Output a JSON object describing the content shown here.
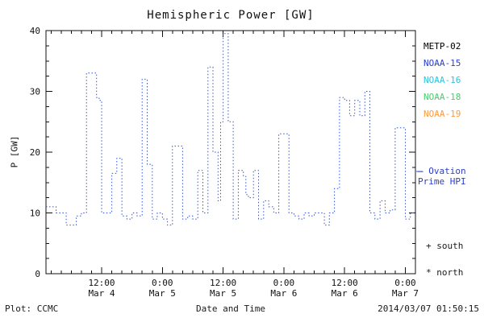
{
  "title": "Hemispheric Power [GW]",
  "ylabel": "P [GW]",
  "footer": {
    "plot_source": "Plot: CCMC",
    "xlabel": "Date and Time",
    "timestamp": "2014/03/07 01:50:15"
  },
  "legend": {
    "satellites": [
      {
        "label": "METP-02",
        "color": "#000000"
      },
      {
        "label": "NOAA-15",
        "color": "#2a3fcc"
      },
      {
        "label": "NOAA-16",
        "color": "#2fc4dd"
      },
      {
        "label": "NOAA-18",
        "color": "#4ecb71"
      },
      {
        "label": "NOAA-19",
        "color": "#ff9a3c"
      }
    ],
    "ovation": {
      "line1": "— Ovation",
      "line2": "Prime HPI",
      "color": "#2a3fcc"
    },
    "markers": [
      {
        "label": "+ south"
      },
      {
        "label": "* north"
      }
    ]
  },
  "chart_data": {
    "type": "line",
    "line_style": "dotted-step",
    "color": "#3355cc",
    "title": "Hemispheric Power [GW]",
    "xlabel": "Date and Time",
    "ylabel": "P [GW]",
    "ylim": [
      0,
      40
    ],
    "yticks": [
      0,
      10,
      20,
      30,
      40
    ],
    "x_hours_range": [
      1,
      74
    ],
    "x_hours_origin": "Mar 4 00:00",
    "xticks": [
      {
        "hour": 12,
        "time": "12:00",
        "date": "Mar 4"
      },
      {
        "hour": 24,
        "time": "0:00",
        "date": "Mar 5"
      },
      {
        "hour": 36,
        "time": "12:00",
        "date": "Mar 5"
      },
      {
        "hour": 48,
        "time": "0:00",
        "date": "Mar 6"
      },
      {
        "hour": 60,
        "time": "12:00",
        "date": "Mar 6"
      },
      {
        "hour": 72,
        "time": "0:00",
        "date": "Mar 7"
      }
    ],
    "series": [
      {
        "name": "Ovation Prime HPI",
        "points": [
          [
            1,
            11
          ],
          [
            2,
            11
          ],
          [
            3,
            10
          ],
          [
            4,
            10
          ],
          [
            5,
            8
          ],
          [
            6,
            8
          ],
          [
            7,
            9.5
          ],
          [
            8,
            10
          ],
          [
            9,
            33
          ],
          [
            10,
            33
          ],
          [
            11,
            29
          ],
          [
            11.5,
            28.5
          ],
          [
            12,
            10
          ],
          [
            13,
            10
          ],
          [
            14,
            16.5
          ],
          [
            15,
            19
          ],
          [
            16,
            9.5
          ],
          [
            17,
            9
          ],
          [
            18,
            10
          ],
          [
            19,
            9.5
          ],
          [
            20,
            32
          ],
          [
            21,
            18
          ],
          [
            22,
            9
          ],
          [
            23,
            10
          ],
          [
            24,
            9
          ],
          [
            25,
            8
          ],
          [
            26,
            21
          ],
          [
            27,
            21
          ],
          [
            28,
            9
          ],
          [
            29,
            9.5
          ],
          [
            30,
            9
          ],
          [
            31,
            17
          ],
          [
            32,
            10
          ],
          [
            33,
            34
          ],
          [
            34,
            20
          ],
          [
            35,
            12
          ],
          [
            35.5,
            25
          ],
          [
            36,
            39.5
          ],
          [
            37,
            25
          ],
          [
            38,
            9
          ],
          [
            39,
            17
          ],
          [
            40,
            16
          ],
          [
            40.5,
            13
          ],
          [
            41,
            12.5
          ],
          [
            42,
            17
          ],
          [
            43,
            9
          ],
          [
            44,
            12
          ],
          [
            45,
            11
          ],
          [
            46,
            10
          ],
          [
            47,
            23
          ],
          [
            48,
            23
          ],
          [
            49,
            10
          ],
          [
            50,
            9.5
          ],
          [
            51,
            9
          ],
          [
            52,
            10
          ],
          [
            53,
            9.5
          ],
          [
            54,
            10
          ],
          [
            55,
            10
          ],
          [
            56,
            8
          ],
          [
            57,
            10
          ],
          [
            58,
            14
          ],
          [
            59,
            29
          ],
          [
            60,
            28.5
          ],
          [
            61,
            26
          ],
          [
            62,
            28.5
          ],
          [
            63,
            26
          ],
          [
            64,
            30
          ],
          [
            65,
            10
          ],
          [
            66,
            9
          ],
          [
            67,
            12
          ],
          [
            68,
            10
          ],
          [
            69,
            10.5
          ],
          [
            70,
            24
          ],
          [
            71,
            24
          ],
          [
            72,
            9
          ],
          [
            73,
            10
          ],
          [
            74,
            10
          ]
        ]
      }
    ]
  }
}
